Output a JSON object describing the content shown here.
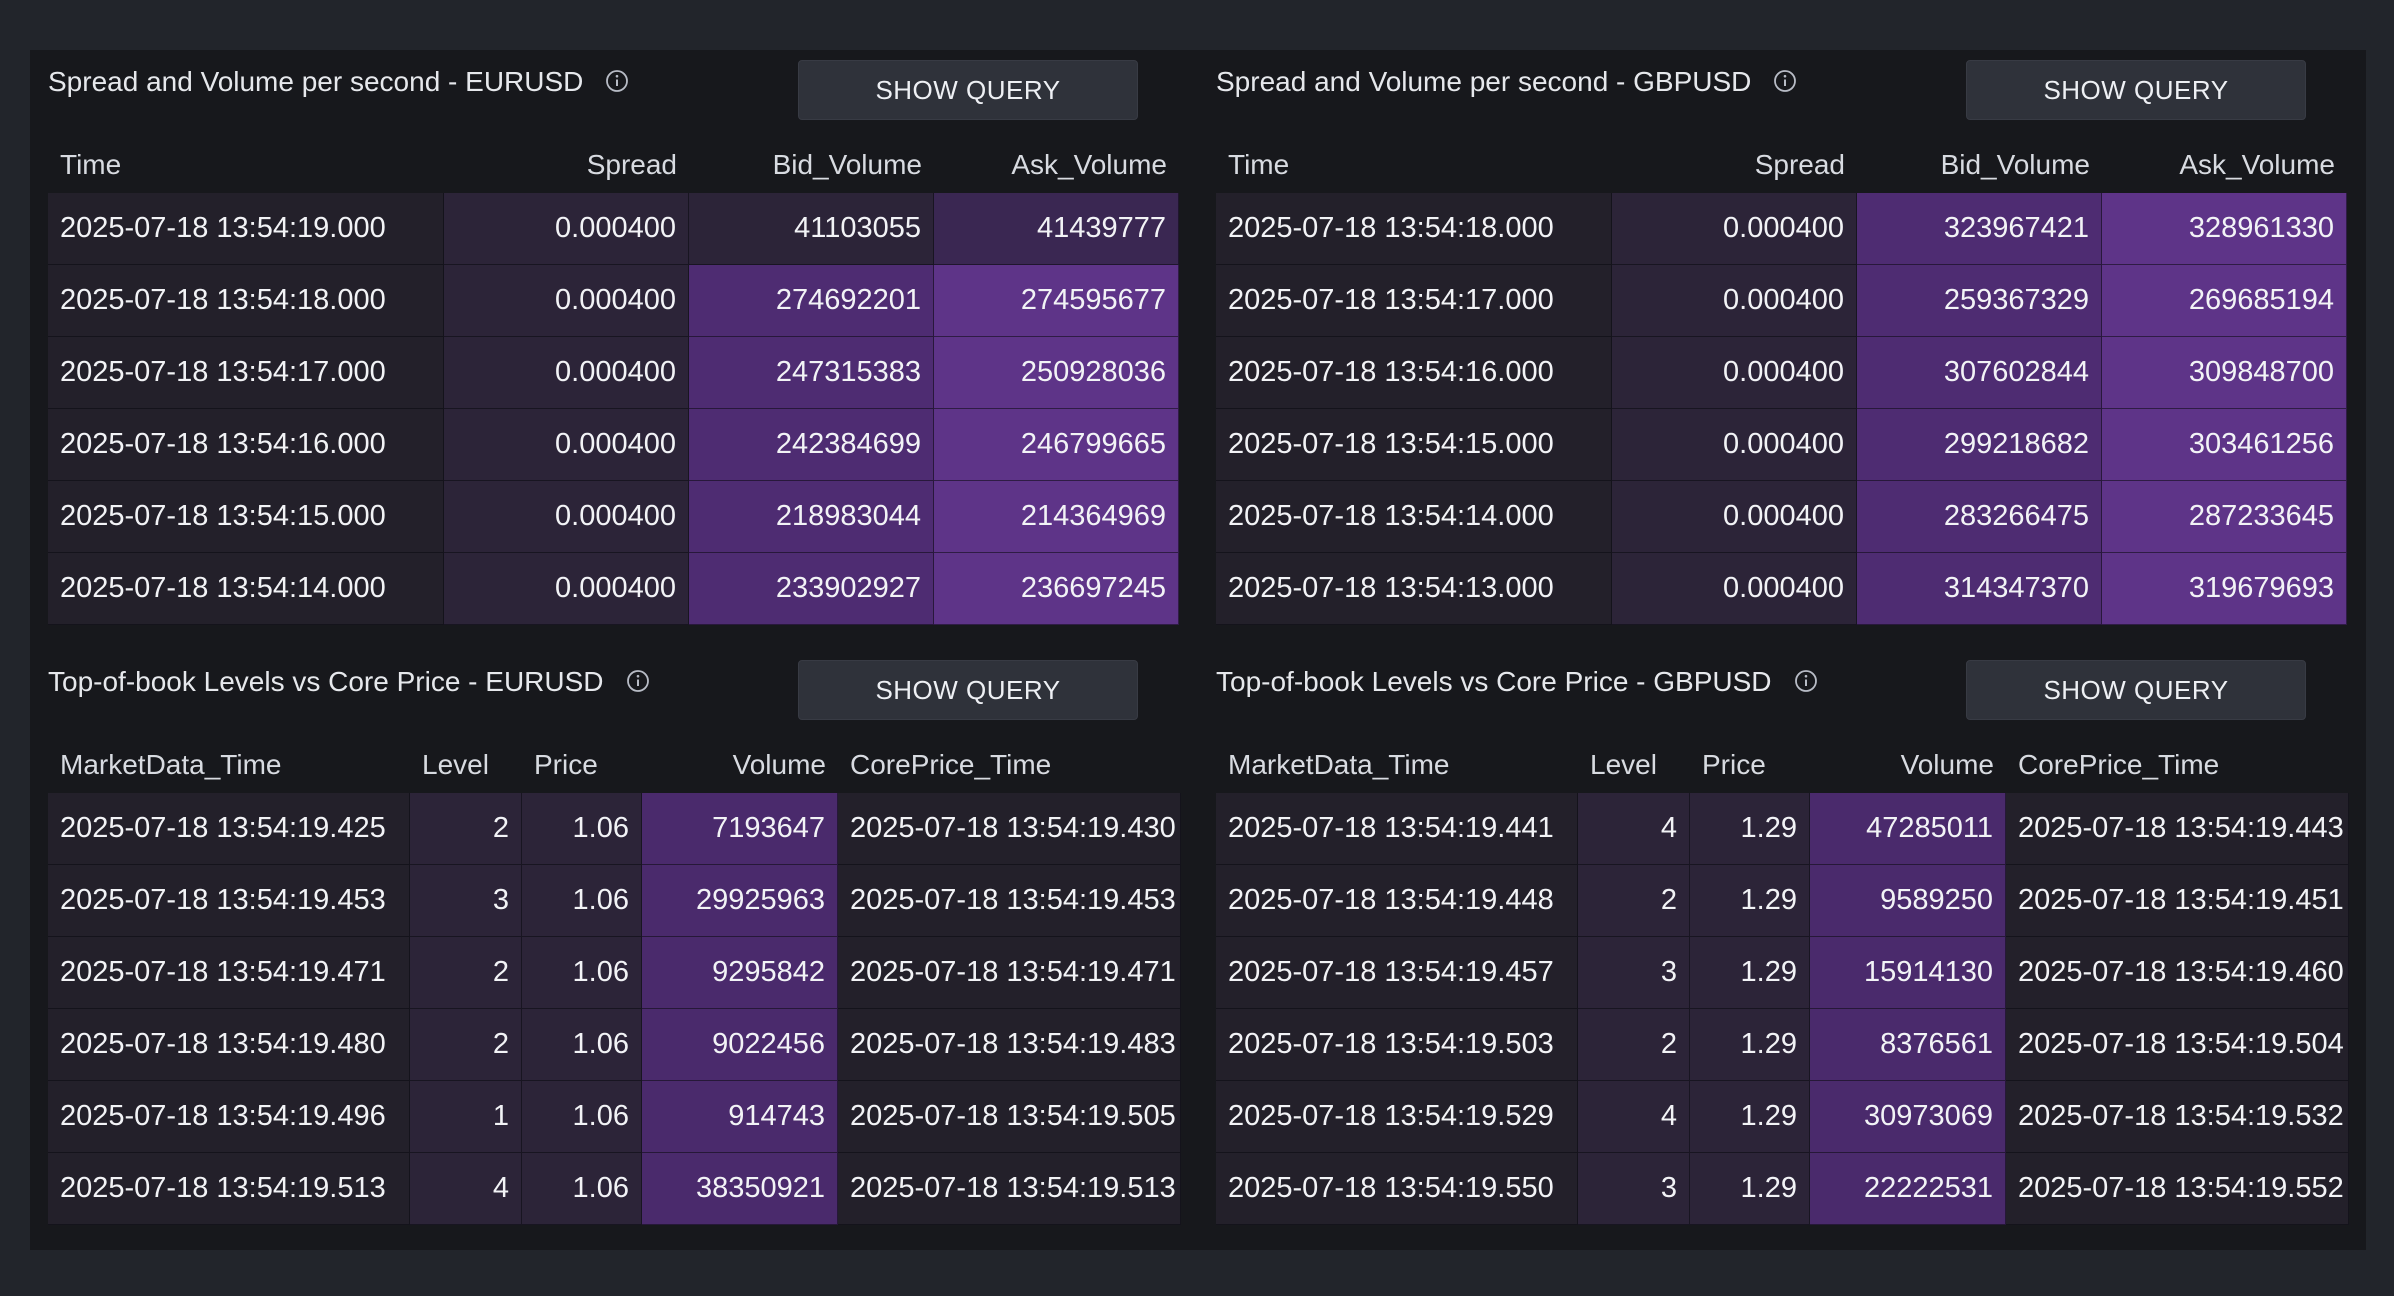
{
  "panels": {
    "spread_eur": {
      "title": "Spread and Volume per second - EURUSD",
      "button": "SHOW QUERY",
      "headers": [
        "Time",
        "Spread",
        "Bid_Volume",
        "Ask_Volume"
      ],
      "rows": [
        [
          "2025-07-18 13:54:19.000",
          "0.000400",
          "41103055",
          "41439777"
        ],
        [
          "2025-07-18 13:54:18.000",
          "0.000400",
          "274692201",
          "274595677"
        ],
        [
          "2025-07-18 13:54:17.000",
          "0.000400",
          "247315383",
          "250928036"
        ],
        [
          "2025-07-18 13:54:16.000",
          "0.000400",
          "242384699",
          "246799665"
        ],
        [
          "2025-07-18 13:54:15.000",
          "0.000400",
          "218983044",
          "214364969"
        ],
        [
          "2025-07-18 13:54:14.000",
          "0.000400",
          "233902927",
          "236697245"
        ]
      ]
    },
    "spread_gbp": {
      "title": "Spread and Volume per second - GBPUSD",
      "button": "SHOW QUERY",
      "headers": [
        "Time",
        "Spread",
        "Bid_Volume",
        "Ask_Volume"
      ],
      "rows": [
        [
          "2025-07-18 13:54:18.000",
          "0.000400",
          "323967421",
          "328961330"
        ],
        [
          "2025-07-18 13:54:17.000",
          "0.000400",
          "259367329",
          "269685194"
        ],
        [
          "2025-07-18 13:54:16.000",
          "0.000400",
          "307602844",
          "309848700"
        ],
        [
          "2025-07-18 13:54:15.000",
          "0.000400",
          "299218682",
          "303461256"
        ],
        [
          "2025-07-18 13:54:14.000",
          "0.000400",
          "283266475",
          "287233645"
        ],
        [
          "2025-07-18 13:54:13.000",
          "0.000400",
          "314347370",
          "319679693"
        ]
      ]
    },
    "tob_eur": {
      "title": "Top-of-book Levels vs Core Price - EURUSD",
      "button": "SHOW QUERY",
      "headers": [
        "MarketData_Time",
        "Level",
        "Price",
        "Volume",
        "CorePrice_Time"
      ],
      "rows": [
        [
          "2025-07-18 13:54:19.425",
          "2",
          "1.06",
          "7193647",
          "2025-07-18 13:54:19.430"
        ],
        [
          "2025-07-18 13:54:19.453",
          "3",
          "1.06",
          "29925963",
          "2025-07-18 13:54:19.453"
        ],
        [
          "2025-07-18 13:54:19.471",
          "2",
          "1.06",
          "9295842",
          "2025-07-18 13:54:19.471"
        ],
        [
          "2025-07-18 13:54:19.480",
          "2",
          "1.06",
          "9022456",
          "2025-07-18 13:54:19.483"
        ],
        [
          "2025-07-18 13:54:19.496",
          "1",
          "1.06",
          "914743",
          "2025-07-18 13:54:19.505"
        ],
        [
          "2025-07-18 13:54:19.513",
          "4",
          "1.06",
          "38350921",
          "2025-07-18 13:54:19.513"
        ]
      ]
    },
    "tob_gbp": {
      "title": "Top-of-book Levels vs Core Price - GBPUSD",
      "button": "SHOW QUERY",
      "headers": [
        "MarketData_Time",
        "Level",
        "Price",
        "Volume",
        "CorePrice_Time"
      ],
      "rows": [
        [
          "2025-07-18 13:54:19.441",
          "4",
          "1.29",
          "47285011",
          "2025-07-18 13:54:19.443"
        ],
        [
          "2025-07-18 13:54:19.448",
          "2",
          "1.29",
          "9589250",
          "2025-07-18 13:54:19.451"
        ],
        [
          "2025-07-18 13:54:19.457",
          "3",
          "1.29",
          "15914130",
          "2025-07-18 13:54:19.460"
        ],
        [
          "2025-07-18 13:54:19.503",
          "2",
          "1.29",
          "8376561",
          "2025-07-18 13:54:19.504"
        ],
        [
          "2025-07-18 13:54:19.529",
          "4",
          "1.29",
          "30973069",
          "2025-07-18 13:54:19.532"
        ],
        [
          "2025-07-18 13:54:19.550",
          "3",
          "1.29",
          "22222531",
          "2025-07-18 13:54:19.552"
        ]
      ]
    }
  }
}
